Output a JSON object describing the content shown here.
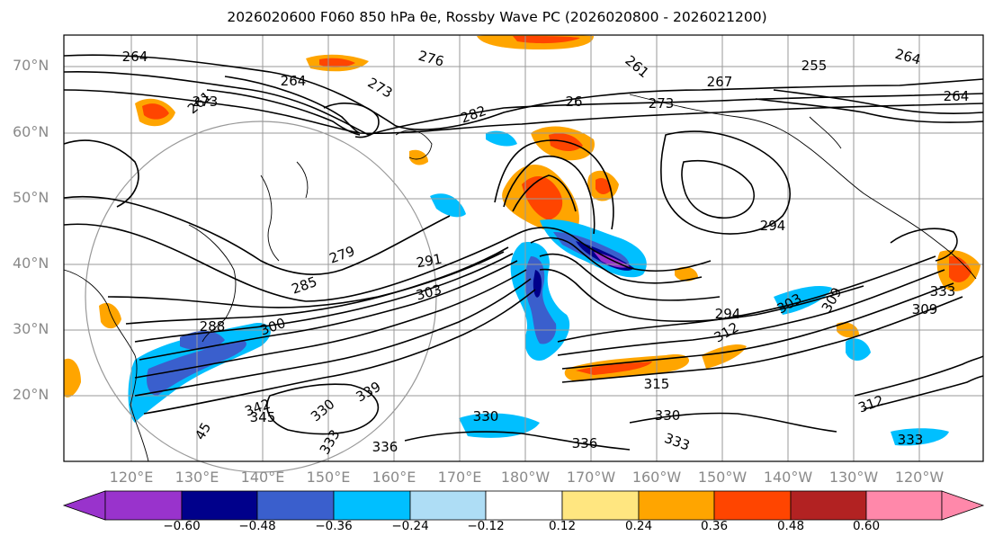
{
  "title": "2026020600 F060 850 hPa θe, Rossby Wave PC (2026020800 - 2026021200)",
  "map": {
    "lat_labels": [
      "70°N",
      "60°N",
      "50°N",
      "40°N",
      "30°N",
      "20°N"
    ],
    "lon_labels": [
      "120°E",
      "130°E",
      "140°E",
      "150°E",
      "160°E",
      "170°E",
      "180°W",
      "170°W",
      "160°W",
      "150°W",
      "140°W",
      "130°W",
      "120°W"
    ],
    "contour_labels": [
      "264",
      "276",
      "261",
      "255",
      "264",
      "264",
      "273",
      "261",
      "273",
      "26",
      "273",
      "282",
      "264",
      "267",
      "294",
      "279",
      "291",
      "285",
      "303",
      "288",
      "300",
      "294",
      "309",
      "309",
      "303",
      "312",
      "333",
      "315",
      "330",
      "345",
      "342",
      "339",
      "330",
      "333",
      "336",
      "336",
      "333",
      "330",
      "312",
      "333",
      "45"
    ],
    "line_color": "#000000",
    "grid_color": "#999999"
  },
  "colorbar": {
    "ticks": [
      "−0.60",
      "−0.48",
      "−0.36",
      "−0.24",
      "−0.12",
      "0.12",
      "0.24",
      "0.36",
      "0.48",
      "0.60"
    ],
    "colors": [
      "#9933cc",
      "#00008b",
      "#3a5fcd",
      "#00bfff",
      "#aeddf5",
      "#ffffff",
      "#ffe680",
      "#ffa500",
      "#ff4500",
      "#b22222",
      "#ff88aa"
    ]
  }
}
